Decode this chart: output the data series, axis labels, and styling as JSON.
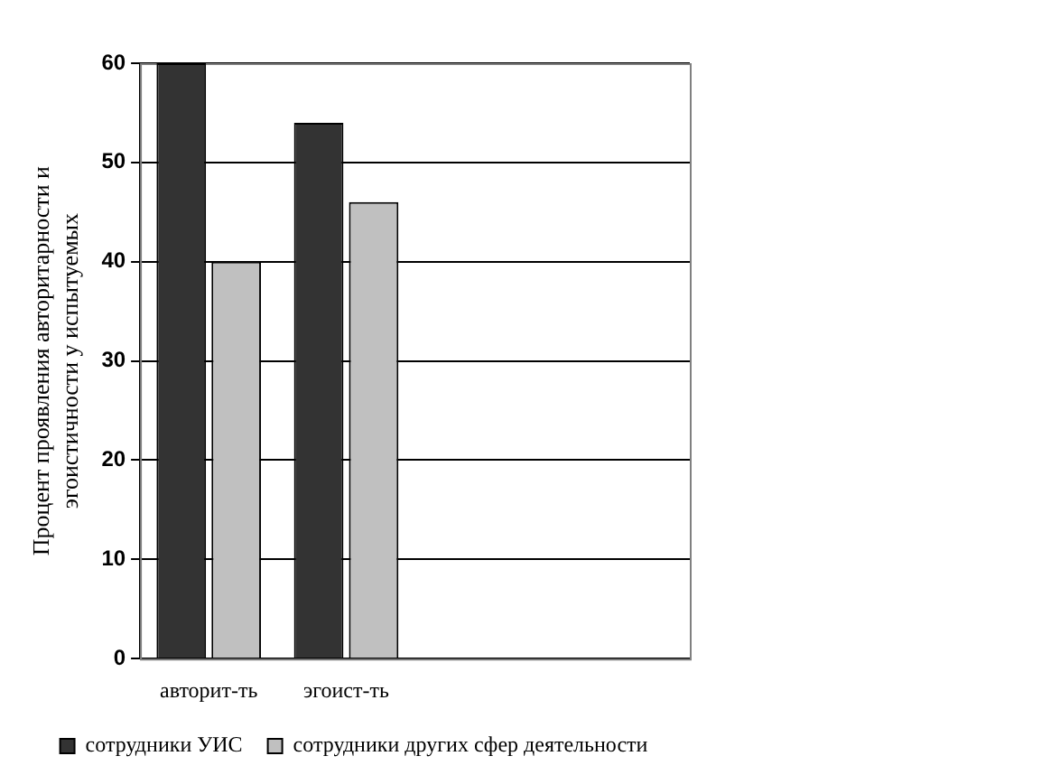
{
  "chart_data": {
    "type": "bar",
    "ylabel": "Процент проявления авторитарности и эгоистичности у испытуемых",
    "categories": [
      "авторит-ть",
      "эгоист-ть",
      null,
      null
    ],
    "series": [
      {
        "name": "сотрудники УИС",
        "color": "#333333",
        "values": [
          60,
          54,
          null,
          null
        ]
      },
      {
        "name": "сотрудники других сфер деятельности",
        "color": "#c0c0c0",
        "values": [
          40,
          46,
          null,
          null
        ]
      }
    ],
    "ylim": [
      0,
      60
    ],
    "yticks": [
      0,
      10,
      20,
      30,
      40,
      50,
      60
    ],
    "grid": "y",
    "legend": "bottom"
  }
}
